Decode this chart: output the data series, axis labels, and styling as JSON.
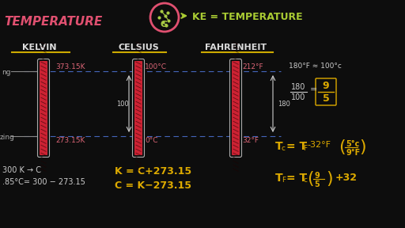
{
  "bg_color": "#0d0d0d",
  "title_text": "TEMPERATURE",
  "title_color": "#e05070",
  "ke_text": "KE = TEMPERATURE",
  "ke_color": "#aacc33",
  "kelvin_label": "KELVIN",
  "celsius_label": "CELSIUS",
  "fahrenheit_label": "FAHRENHEIT",
  "header_color": "#dddddd",
  "underline_color": "#ccaa00",
  "boiling_k": "373.15K",
  "freezing_k": "273.15K",
  "boiling_c": "100°C",
  "freezing_c": "0°C",
  "boiling_f": "212°F",
  "freezing_f": "32°F",
  "temp_label_color": "#dd6677",
  "dashed_line_color": "#3355aa",
  "white_color": "#cccccc",
  "formula_color": "#ddaa00",
  "formula1": "K = C+273.15",
  "formula2": "C = K−273.15",
  "ratio_top": "180°F ≈ 100°c",
  "ratio_num": "180",
  "ratio_den": "100",
  "ratio_eq": "=",
  "box_num": "9",
  "box_den": "5",
  "bottom_text1": "300 K → C",
  "bottom_text2": ".85°C= 300 − 273.15",
  "left_boil": "ng",
  "left_freeze": "zing",
  "diff_100": "100",
  "diff_180": "180",
  "thermo_red": "#cc2233",
  "thermo_gray": "#aaaaaa"
}
